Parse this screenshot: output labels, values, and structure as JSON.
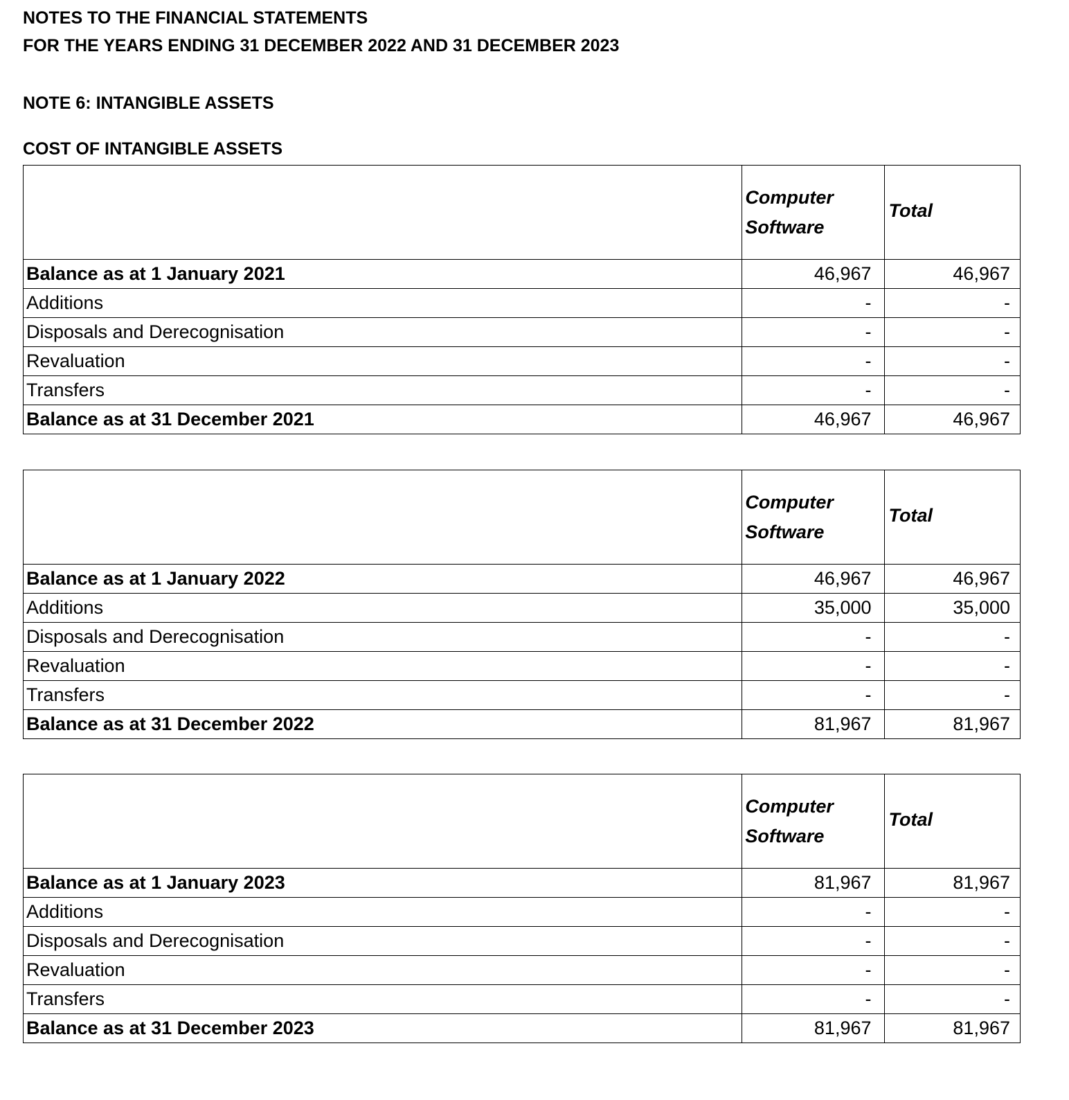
{
  "header": {
    "line1": "NOTES TO THE FINANCIAL STATEMENTS",
    "line2": "FOR THE YEARS ENDING 31 DECEMBER 2022 AND 31 DECEMBER 2023",
    "note": "NOTE 6: INTANGIBLE ASSETS",
    "section": "COST OF INTANGIBLE ASSETS"
  },
  "tables": [
    {
      "col1": "Computer Software",
      "col2": "Total",
      "rows": [
        {
          "label": "Balance as at 1 January 2021",
          "a": "46,967",
          "b": "46,967",
          "bold": true
        },
        {
          "label": "Additions",
          "a": "-",
          "b": "-"
        },
        {
          "label": "Disposals and Derecognisation",
          "a": "-",
          "b": "-"
        },
        {
          "label": "Revaluation",
          "a": "-",
          "b": "-"
        },
        {
          "label": "Transfers",
          "a": "-",
          "b": "-"
        },
        {
          "label": "Balance as at 31 December 2021",
          "a": "46,967",
          "b": "46,967",
          "bold": true
        }
      ]
    },
    {
      "col1": "Computer Software",
      "col2": "Total",
      "rows": [
        {
          "label": "Balance as at 1 January 2022",
          "a": "46,967",
          "b": "46,967",
          "bold": true
        },
        {
          "label": "Additions",
          "a": "35,000",
          "b": "35,000"
        },
        {
          "label": "Disposals and Derecognisation",
          "a": "-",
          "b": "-"
        },
        {
          "label": "Revaluation",
          "a": "-",
          "b": "-"
        },
        {
          "label": "Transfers",
          "a": "-",
          "b": "-"
        },
        {
          "label": "Balance as at 31 December 2022",
          "a": "81,967",
          "b": "81,967",
          "bold": true
        }
      ]
    },
    {
      "col1": "Computer Software",
      "col2": "Total",
      "rows": [
        {
          "label": "Balance as at 1 January 2023",
          "a": "81,967",
          "b": "81,967",
          "bold": true
        },
        {
          "label": "Additions",
          "a": "-",
          "b": "-"
        },
        {
          "label": "Disposals and Derecognisation",
          "a": "-",
          "b": "-"
        },
        {
          "label": "Revaluation",
          "a": "-",
          "b": "-"
        },
        {
          "label": "Transfers",
          "a": "-",
          "b": "-"
        },
        {
          "label": "Balance as at 31 December 2023",
          "a": "81,967",
          "b": "81,967",
          "bold": true
        }
      ]
    }
  ]
}
